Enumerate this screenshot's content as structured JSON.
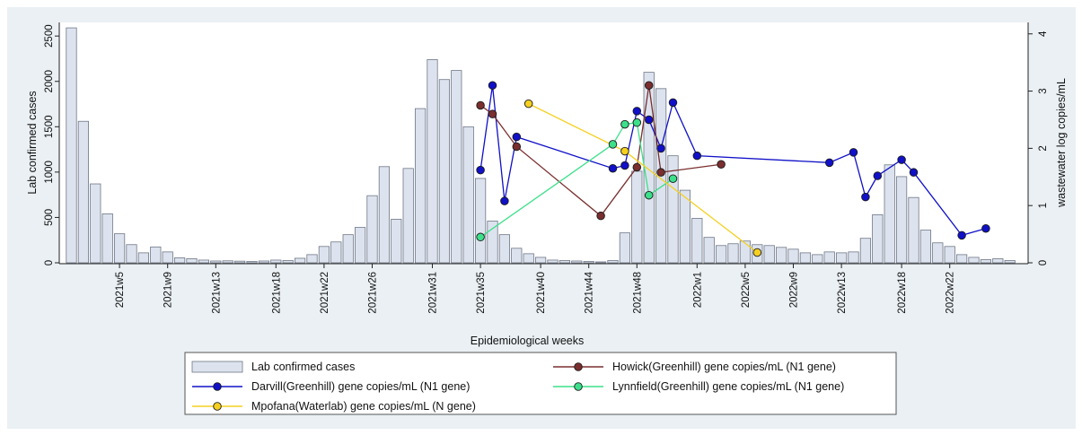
{
  "chart_data": {
    "type": "bar+line",
    "xlabel": "Epidemiological weeks",
    "ylabel_left": "Lab confirmed cases",
    "ylabel_right": "wastewater log copies/mL",
    "ylim_left": [
      0,
      2650
    ],
    "ylim_right": [
      0,
      4.2
    ],
    "yticks_left": [
      0,
      500,
      1000,
      1500,
      2000,
      2500
    ],
    "yticks_right": [
      0,
      1,
      2,
      3,
      4
    ],
    "x_tick_labels": [
      {
        "week": 5,
        "label": "2021w5"
      },
      {
        "week": 9,
        "label": "2021w9"
      },
      {
        "week": 13,
        "label": "2021w13"
      },
      {
        "week": 18,
        "label": "2021w18"
      },
      {
        "week": 22,
        "label": "2021w22"
      },
      {
        "week": 26,
        "label": "2021w26"
      },
      {
        "week": 31,
        "label": "2021w31"
      },
      {
        "week": 35,
        "label": "2021w35"
      },
      {
        "week": 40,
        "label": "2021w40"
      },
      {
        "week": 44,
        "label": "2021w44"
      },
      {
        "week": 48,
        "label": "2021w48"
      },
      {
        "week": 53,
        "label": "2022w1"
      },
      {
        "week": 57,
        "label": "2022w5"
      },
      {
        "week": 61,
        "label": "2022w9"
      },
      {
        "week": 65,
        "label": "2022w13"
      },
      {
        "week": 70,
        "label": "2022w18"
      },
      {
        "week": 74,
        "label": "2022w22"
      }
    ],
    "bar_series": {
      "name": "Lab confirmed cases",
      "start_week": 1,
      "values": [
        2590,
        1560,
        870,
        540,
        320,
        200,
        110,
        175,
        120,
        55,
        45,
        30,
        20,
        22,
        18,
        15,
        20,
        30,
        25,
        50,
        90,
        180,
        230,
        310,
        390,
        740,
        1060,
        480,
        1040,
        1700,
        2240,
        2020,
        2120,
        1500,
        930,
        460,
        310,
        160,
        100,
        60,
        30,
        25,
        20,
        15,
        10,
        25,
        330,
        1010,
        2100,
        1920,
        1180,
        800,
        490,
        280,
        190,
        210,
        240,
        200,
        190,
        170,
        150,
        110,
        90,
        120,
        110,
        120,
        270,
        530,
        1080,
        950,
        720,
        360,
        220,
        180,
        90,
        60,
        35,
        45,
        25
      ]
    },
    "line_series": [
      {
        "name": "Darvill(Greenhill) gene copies/mL (N1 gene)",
        "color": "#1010c8",
        "points": [
          [
            35,
            1.62
          ],
          [
            36,
            3.1
          ],
          [
            37,
            1.08
          ],
          [
            38,
            2.2
          ],
          [
            46,
            1.65
          ],
          [
            47,
            1.7
          ],
          [
            48,
            2.65
          ],
          [
            49,
            2.5
          ],
          [
            50,
            2.0
          ],
          [
            51,
            2.8
          ],
          [
            53,
            1.87
          ],
          [
            64,
            1.75
          ],
          [
            66,
            1.93
          ],
          [
            67,
            1.15
          ],
          [
            68,
            1.52
          ],
          [
            70,
            1.8
          ],
          [
            71,
            1.58
          ],
          [
            75,
            0.48
          ],
          [
            77,
            0.6
          ]
        ]
      },
      {
        "name": "Howick(Greenhill) gene copies/mL (N1 gene)",
        "color": "#7a2e2e",
        "points": [
          [
            35,
            2.75
          ],
          [
            36,
            2.6
          ],
          [
            38,
            2.03
          ],
          [
            45,
            0.82
          ],
          [
            48,
            1.67
          ],
          [
            49,
            3.1
          ],
          [
            50,
            1.58
          ],
          [
            55,
            1.72
          ]
        ]
      },
      {
        "name": "Lynnfield(Greenhill) gene copies/mL (N1 gene)",
        "color": "#3ce08a",
        "points": [
          [
            35,
            0.45
          ],
          [
            46,
            2.07
          ],
          [
            47,
            2.42
          ],
          [
            48,
            2.45
          ],
          [
            49,
            1.18
          ],
          [
            51,
            1.47
          ]
        ]
      },
      {
        "name": "Mpofana(Waterlab) gene copies/mL (N gene)",
        "color": "#f5d020",
        "points": [
          [
            39,
            2.78
          ],
          [
            47,
            1.95
          ],
          [
            58,
            0.18
          ]
        ]
      }
    ],
    "legend": {
      "placement": "bottom",
      "entries": [
        "Lab confirmed cases",
        "Howick(Greenhill) gene copies/mL (N1 gene)",
        "Darvill(Greenhill) gene copies/mL (N1 gene)",
        "Lynnfield(Greenhill) gene copies/mL (N1 gene)",
        "Mpofana(Waterlab) gene copies/mL (N gene)"
      ]
    },
    "grid": false
  }
}
